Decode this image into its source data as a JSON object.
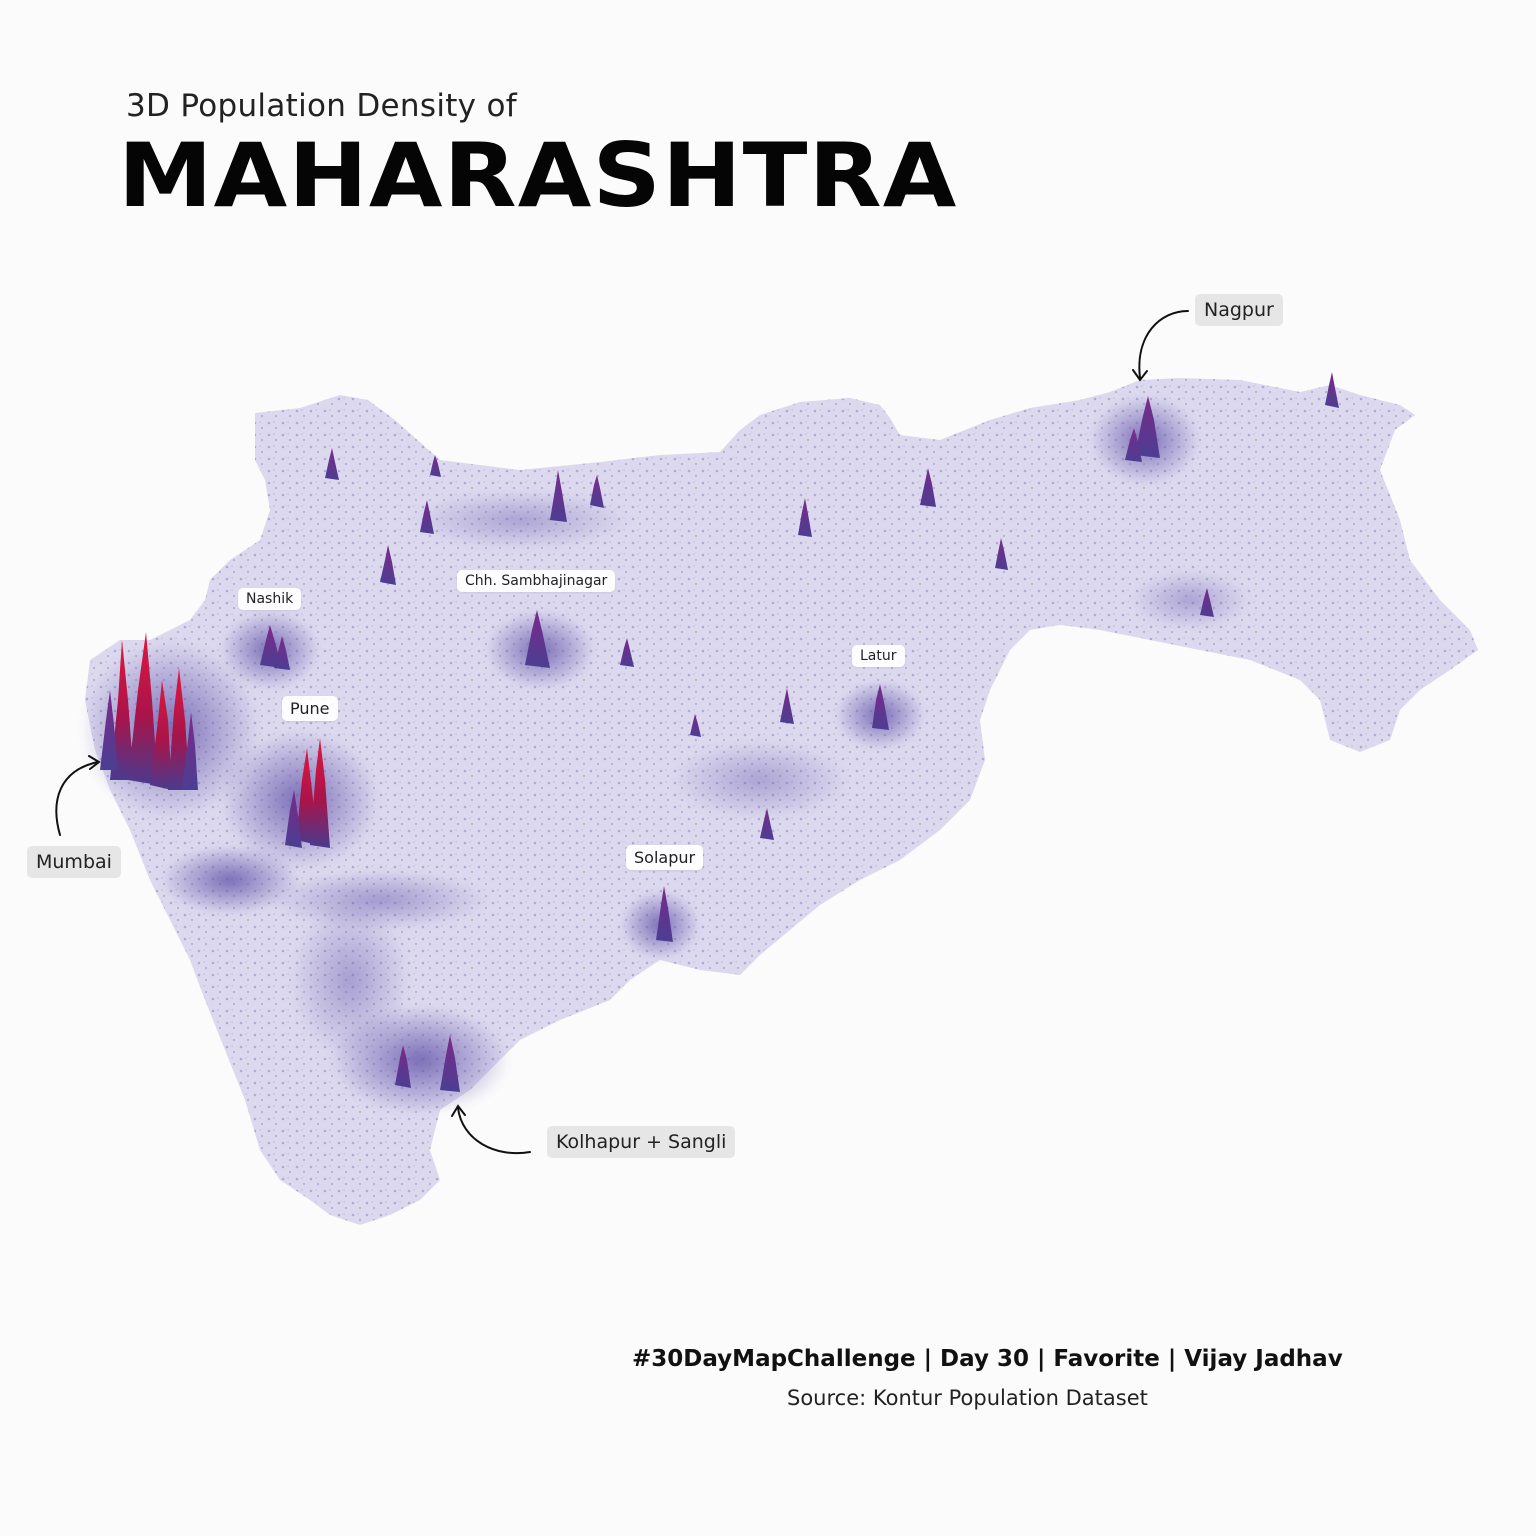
{
  "header": {
    "subtitle": "3D Population Density of",
    "title": "MAHARASHTRA"
  },
  "labels": {
    "nagpur": "Nagpur",
    "nashik": "Nashik",
    "sambhajinagar": "Chh. Sambhajinagar",
    "latur": "Latur",
    "pune": "Pune",
    "mumbai": "Mumbai",
    "solapur": "Solapur",
    "kolhapur": "Kolhapur + Sangli"
  },
  "footer": {
    "credit": "#30DayMapChallenge | Day 30 | Favorite | Vijay Jadhav",
    "source": "Source: Kontur Population Dataset"
  },
  "colors": {
    "land": "#dcd9ee",
    "density_low": "#8f86c4",
    "density_mid": "#5a4c9a",
    "density_high": "#d0143a"
  }
}
